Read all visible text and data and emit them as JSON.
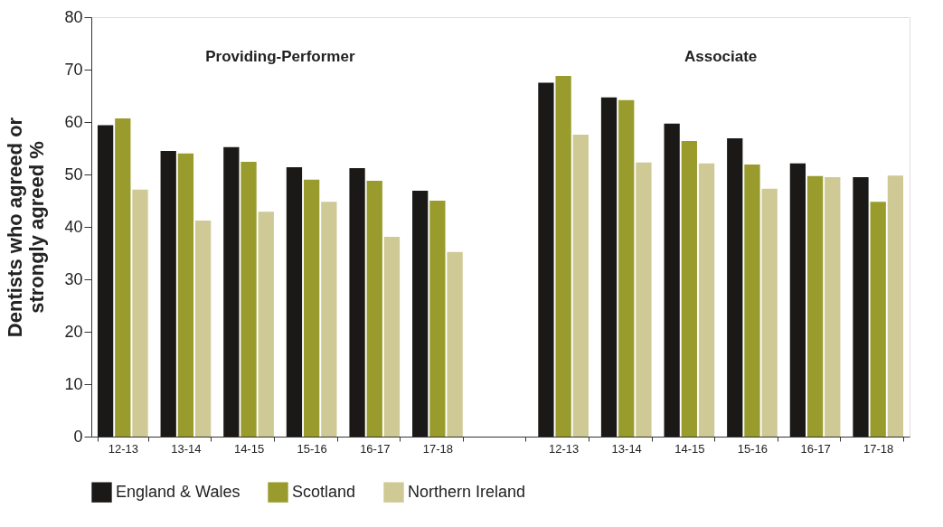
{
  "chart_data": {
    "type": "bar",
    "ylabel": "Dentists who agreed or\nstrongly agreed %",
    "categories": [
      "12-13",
      "13-14",
      "14-15",
      "15-16",
      "16-17",
      "17-18",
      null,
      "12-13",
      "13-14",
      "14-15",
      "15-16",
      "16-17",
      "17-18"
    ],
    "series": [
      {
        "name": "England & Wales",
        "color": "#1a1917",
        "values": [
          59.4,
          54.5,
          55.2,
          51.4,
          51.2,
          46.9,
          null,
          67.5,
          64.7,
          59.7,
          56.9,
          52.1,
          49.5
        ]
      },
      {
        "name": "Scotland",
        "color": "#999c2c",
        "values": [
          60.7,
          54.0,
          52.4,
          49.0,
          48.8,
          45.0,
          null,
          68.8,
          64.2,
          56.4,
          51.9,
          49.7,
          44.8
        ]
      },
      {
        "name": "Northern Ireland",
        "color": "#cec995",
        "values": [
          47.1,
          41.2,
          42.9,
          44.8,
          38.1,
          35.2,
          null,
          57.6,
          52.3,
          52.1,
          47.3,
          49.5,
          49.8
        ]
      }
    ],
    "annotations": [
      "Providing-Performer",
      "Associate"
    ],
    "ylim": [
      0,
      80
    ],
    "yticks": [
      0,
      10,
      20,
      30,
      40,
      50,
      60,
      70,
      80
    ],
    "grid": false,
    "legend": "bottom"
  }
}
